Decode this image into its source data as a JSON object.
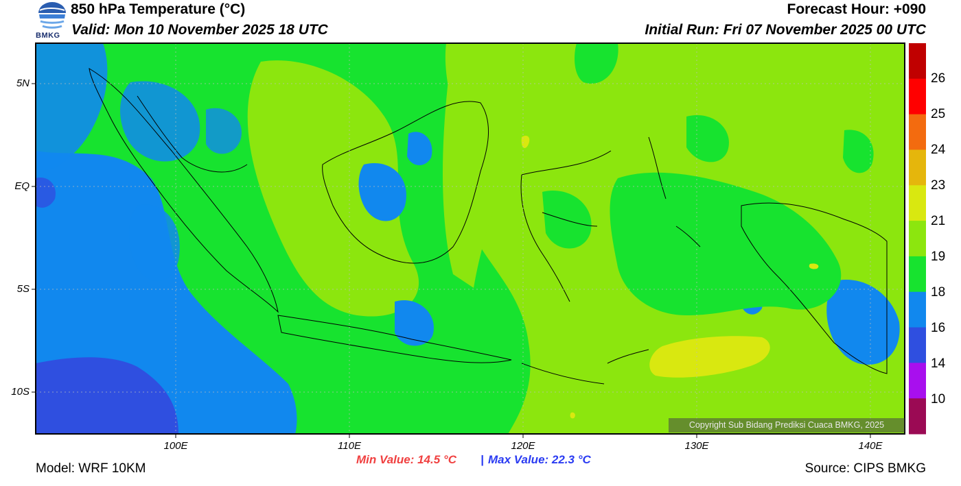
{
  "header": {
    "title": "850 hPa Temperature (°C)",
    "valid": "Valid: Mon 10 November 2025 18 UTC",
    "forecast_hour": "Forecast Hour: +090",
    "initial_run": "Initial Run: Fri 07 November 2025 00 UTC",
    "logo_text": "BMKG"
  },
  "map": {
    "lon_range": [
      92,
      142
    ],
    "lat_range": [
      -12,
      7
    ],
    "lat_ticks": [
      {
        "lat": 5,
        "label": "5N"
      },
      {
        "lat": 0,
        "label": "EQ"
      },
      {
        "lat": -5,
        "label": "5S"
      },
      {
        "lat": -10,
        "label": "10S"
      }
    ],
    "lon_ticks": [
      {
        "lon": 100,
        "label": "100E"
      },
      {
        "lon": 110,
        "label": "110E"
      },
      {
        "lon": 120,
        "label": "120E"
      },
      {
        "lon": 130,
        "label": "130E"
      },
      {
        "lon": 140,
        "label": "140E"
      }
    ],
    "grid": true,
    "copyright": "Copyright Sub Bidang Prediksi Cuaca BMKG, 2025"
  },
  "colorbar": {
    "labels": [
      "26",
      "25",
      "24",
      "23",
      "21",
      "19",
      "18",
      "16",
      "14",
      "10"
    ],
    "colors": [
      "#c00000",
      "#ff0000",
      "#f36b0f",
      "#e5b60c",
      "#d9e810",
      "#8ce60e",
      "#17e32f",
      "#1188ee",
      "#2f4fe0",
      "#a80fee",
      "#9b0a54"
    ]
  },
  "stats": {
    "min_label": "Min Value: 14.5 °C",
    "separator": "|",
    "max_label": "Max Value: 22.3 °C",
    "min_color": "#f04040",
    "max_color": "#2a3bf2"
  },
  "footer": {
    "model": "Model: WRF 10KM",
    "source": "Source: CIPS BMKG"
  }
}
